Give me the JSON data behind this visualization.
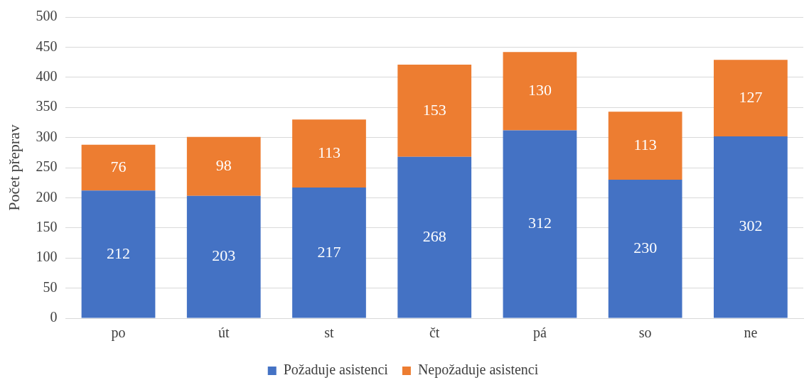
{
  "chart_data": {
    "type": "bar",
    "stacked": true,
    "ylabel": "Počet přeprav",
    "categories": [
      "po",
      "út",
      "st",
      "čt",
      "pá",
      "so",
      "ne"
    ],
    "series": [
      {
        "name": "Požaduje asistenci",
        "color": "#4472c4",
        "values": [
          212,
          203,
          217,
          268,
          312,
          230,
          302
        ]
      },
      {
        "name": "Nepožaduje asistenci",
        "color": "#ed7d31",
        "values": [
          76,
          98,
          113,
          153,
          130,
          113,
          127
        ]
      }
    ],
    "ylim": [
      0,
      500
    ],
    "yticks": [
      0,
      50,
      100,
      150,
      200,
      250,
      300,
      350,
      400,
      450,
      500
    ],
    "grid": "y",
    "legend": "bottom",
    "data_labels": true
  }
}
